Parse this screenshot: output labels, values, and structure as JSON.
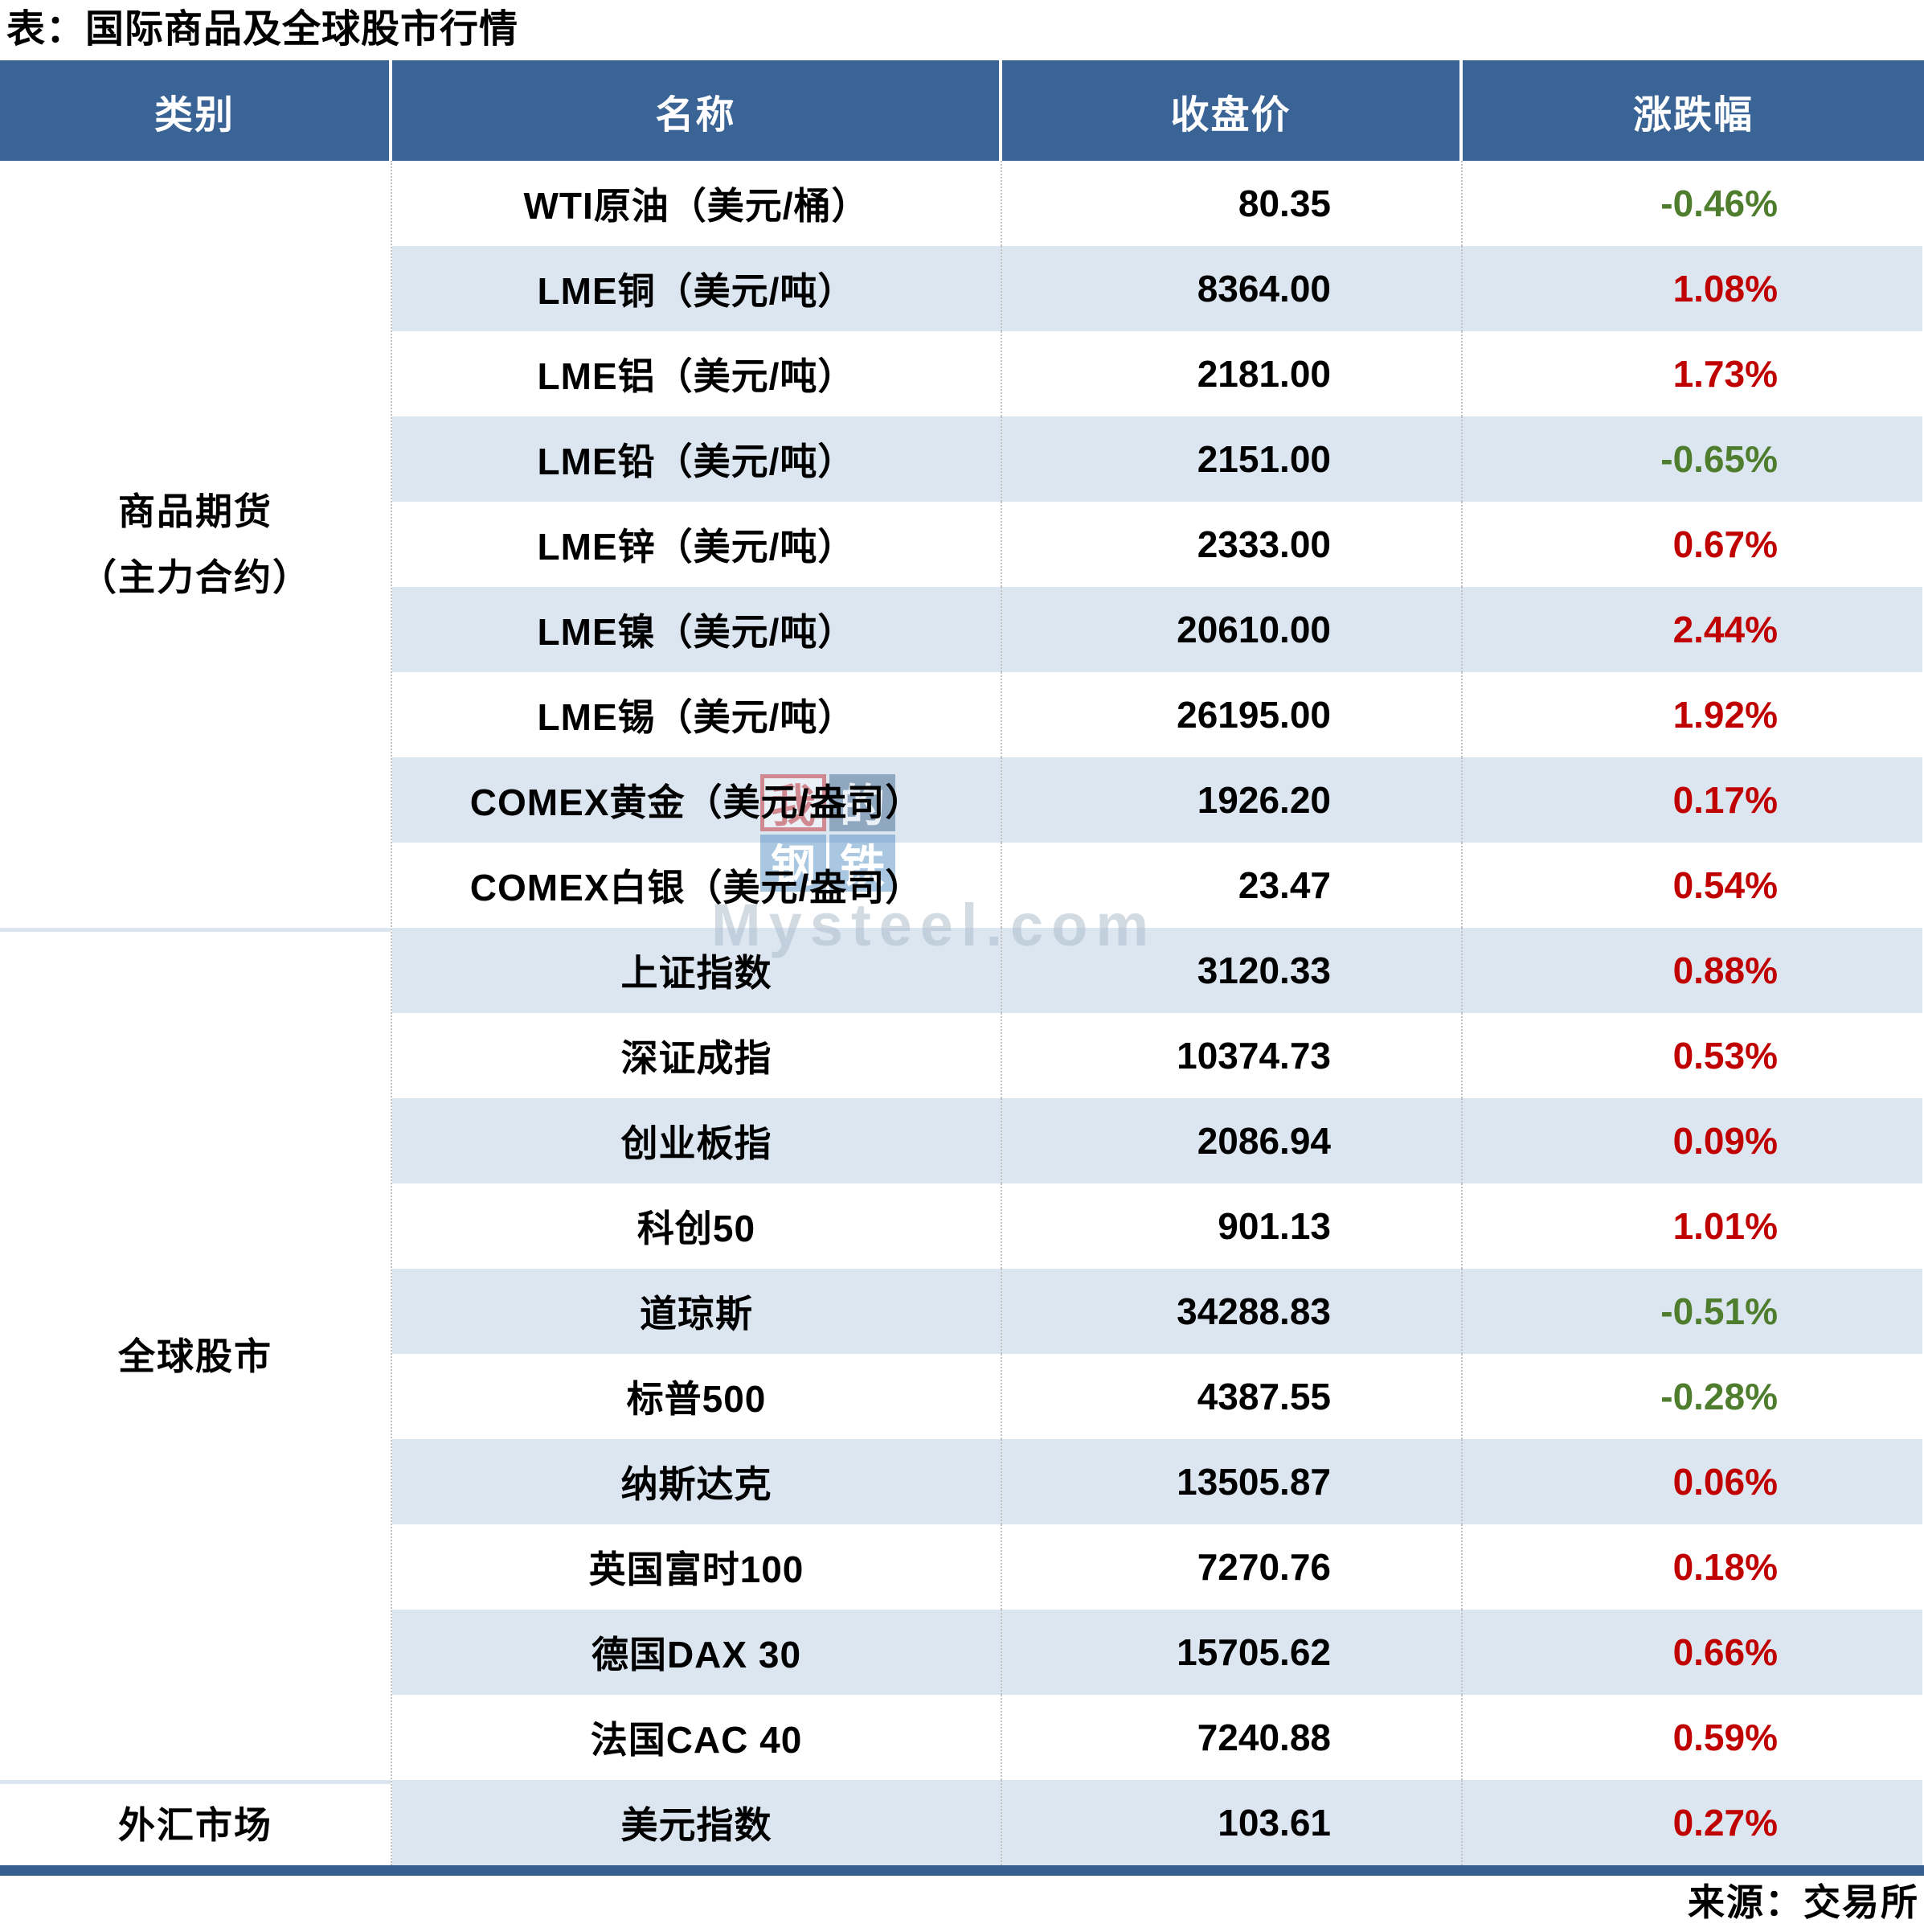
{
  "title": "表：国际商品及全球股市行情",
  "source": "来源：交易所",
  "watermark": {
    "tiles": [
      "我",
      "的",
      "钢",
      "铁"
    ],
    "text": "Mysteel.com"
  },
  "colors": {
    "header_bg": "#3a6496",
    "row_stripe": "#dce6f1",
    "bottom_bar": "#35608f",
    "up_red": "#c00000",
    "down_green": "#4e7d2d"
  },
  "table": {
    "headers": [
      "类别",
      "名称",
      "收盘价",
      "涨跌幅"
    ],
    "categories": [
      {
        "label_lines": [
          "商品期货",
          "（主力合约）"
        ],
        "rowspan": 9
      },
      {
        "label_lines": [
          "全球股市"
        ],
        "rowspan": 10
      },
      {
        "label_lines": [
          "外汇市场"
        ],
        "rowspan": 1
      }
    ],
    "rows": [
      {
        "category": "商品期货（主力合约）",
        "name": "WTI原油（美元/桶）",
        "close": "80.35",
        "change": "-0.46%"
      },
      {
        "category": "商品期货（主力合约）",
        "name": "LME铜（美元/吨）",
        "close": "8364.00",
        "change": "1.08%"
      },
      {
        "category": "商品期货（主力合约）",
        "name": "LME铝（美元/吨）",
        "close": "2181.00",
        "change": "1.73%"
      },
      {
        "category": "商品期货（主力合约）",
        "name": "LME铅（美元/吨）",
        "close": "2151.00",
        "change": "-0.65%"
      },
      {
        "category": "商品期货（主力合约）",
        "name": "LME锌（美元/吨）",
        "close": "2333.00",
        "change": "0.67%"
      },
      {
        "category": "商品期货（主力合约）",
        "name": "LME镍（美元/吨）",
        "close": "20610.00",
        "change": "2.44%"
      },
      {
        "category": "商品期货（主力合约）",
        "name": "LME锡（美元/吨）",
        "close": "26195.00",
        "change": "1.92%"
      },
      {
        "category": "商品期货（主力合约）",
        "name": "COMEX黄金（美元/盎司）",
        "close": "1926.20",
        "change": "0.17%"
      },
      {
        "category": "商品期货（主力合约）",
        "name": "COMEX白银（美元/盎司）",
        "close": "23.47",
        "change": "0.54%"
      },
      {
        "category": "全球股市",
        "name": "上证指数",
        "close": "3120.33",
        "change": "0.88%"
      },
      {
        "category": "全球股市",
        "name": "深证成指",
        "close": "10374.73",
        "change": "0.53%"
      },
      {
        "category": "全球股市",
        "name": "创业板指",
        "close": "2086.94",
        "change": "0.09%"
      },
      {
        "category": "全球股市",
        "name": "科创50",
        "close": "901.13",
        "change": "1.01%"
      },
      {
        "category": "全球股市",
        "name": "道琼斯",
        "close": "34288.83",
        "change": "-0.51%"
      },
      {
        "category": "全球股市",
        "name": "标普500",
        "close": "4387.55",
        "change": "-0.28%"
      },
      {
        "category": "全球股市",
        "name": "纳斯达克",
        "close": "13505.87",
        "change": "0.06%"
      },
      {
        "category": "全球股市",
        "name": "英国富时100",
        "close": "7270.76",
        "change": "0.18%"
      },
      {
        "category": "全球股市",
        "name": "德国DAX 30",
        "close": "15705.62",
        "change": "0.66%"
      },
      {
        "category": "全球股市",
        "name": "法国CAC 40",
        "close": "7240.88",
        "change": "0.59%"
      },
      {
        "category": "外汇市场",
        "name": "美元指数",
        "close": "103.61",
        "change": "0.27%"
      }
    ]
  }
}
